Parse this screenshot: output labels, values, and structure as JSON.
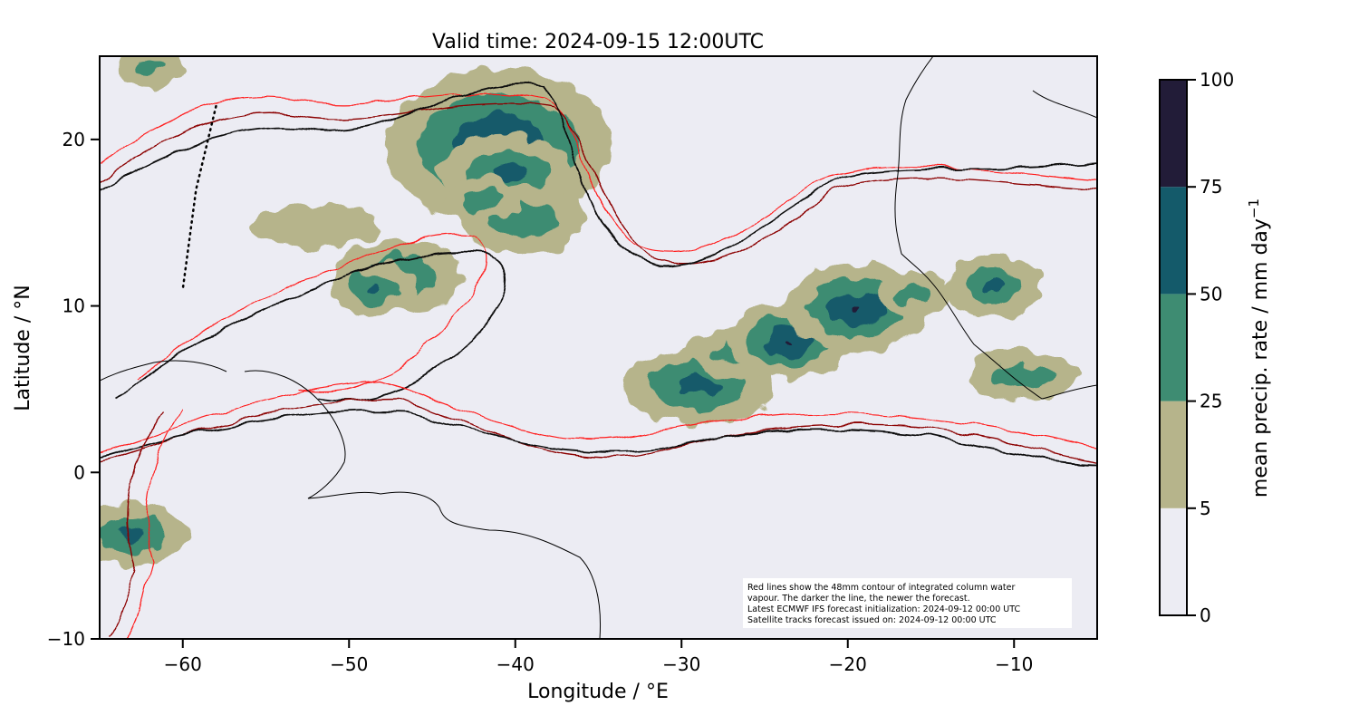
{
  "title": "Valid time: 2024-09-15 12:00UTC",
  "xaxis": {
    "label": "Longitude / °E",
    "range": [
      -65,
      -5
    ],
    "ticks": [
      -60,
      -50,
      -40,
      -30,
      -20,
      -10
    ],
    "tick_labels": [
      "−60",
      "−50",
      "−40",
      "−30",
      "−20",
      "−10"
    ]
  },
  "yaxis": {
    "label": "Latitude / °N",
    "range": [
      -10,
      25
    ],
    "ticks": [
      -10,
      0,
      10,
      20
    ],
    "tick_labels": [
      "−10",
      "0",
      "10",
      "20"
    ]
  },
  "colorbar": {
    "label": "mean precip. rate / mm day",
    "label_exponent": "−1",
    "levels": [
      0,
      5,
      25,
      50,
      75,
      100
    ],
    "level_labels": [
      "0",
      "5",
      "25",
      "50",
      "75",
      "100"
    ],
    "colors": [
      "#ececf3",
      "#b6b48b",
      "#3e8c72",
      "#145a6a",
      "#221c38"
    ]
  },
  "annotation": [
    "Red lines show the 48mm contour of integrated column water",
    "vapour. The darker the line, the newer the forecast.",
    "Latest ECMWF IFS forecast initialization: 2024-09-12 00:00 UTC",
    "Satellite tracks forecast issued on: 2024-09-12 00:00 UTC"
  ],
  "colors": {
    "ocean": "#ececf3",
    "coast": "#000000",
    "contour_old": "#ff1a1a",
    "contour_mid": "#8b0000",
    "contour_new": "#2a0000"
  },
  "chart_data": {
    "type": "heatmap",
    "projection": "lat-lon",
    "precip_cells": [
      {
        "lon": -41,
        "lat": 19.6,
        "rlon": 4.5,
        "rlat": 3.0,
        "level": 3
      },
      {
        "lon": -40.5,
        "lat": 18.0,
        "rlon": 2.5,
        "rlat": 1.2,
        "level": 2
      },
      {
        "lon": -39.5,
        "lat": 15.2,
        "rlon": 3.0,
        "rlat": 1.5,
        "level": 1
      },
      {
        "lon": -42,
        "lat": 16.4,
        "rlon": 1.5,
        "rlat": 0.8,
        "level": 1
      },
      {
        "lon": -52,
        "lat": 14.8,
        "rlon": 4.0,
        "rlat": 1.2,
        "level": 0
      },
      {
        "lon": -47,
        "lat": 11.8,
        "rlon": 3.2,
        "rlat": 1.6,
        "level": 1
      },
      {
        "lon": -48.5,
        "lat": 11.0,
        "rlon": 1.0,
        "rlat": 0.5,
        "level": 2
      },
      {
        "lon": -29,
        "lat": 5.2,
        "rlon": 3.0,
        "rlat": 1.2,
        "level": 2
      },
      {
        "lon": -26,
        "lat": 7.2,
        "rlon": 3.0,
        "rlat": 1.0,
        "level": 1
      },
      {
        "lon": -23.5,
        "lat": 7.9,
        "rlon": 1.4,
        "rlat": 0.7,
        "level": 3
      },
      {
        "lon": -19.5,
        "lat": 9.9,
        "rlon": 2.0,
        "rlat": 1.0,
        "level": 3
      },
      {
        "lon": -16,
        "lat": 10.7,
        "rlon": 1.5,
        "rlat": 0.8,
        "level": 1
      },
      {
        "lon": -11.2,
        "lat": 11.2,
        "rlon": 1.3,
        "rlat": 0.8,
        "level": 2
      },
      {
        "lon": -62.0,
        "lat": 24.3,
        "rlon": 1.2,
        "rlat": 0.7,
        "level": 1
      },
      {
        "lon": -63.0,
        "lat": -3.7,
        "rlon": 1.8,
        "rlat": 0.8,
        "level": 2
      },
      {
        "lon": -9.5,
        "lat": 5.8,
        "rlon": 2.5,
        "rlat": 1.0,
        "level": 1
      }
    ],
    "tracks": [
      {
        "points": [
          [
            -58,
            22
          ],
          [
            -59.2,
            17
          ],
          [
            -60,
            11
          ]
        ],
        "style": "dotted"
      }
    ]
  }
}
